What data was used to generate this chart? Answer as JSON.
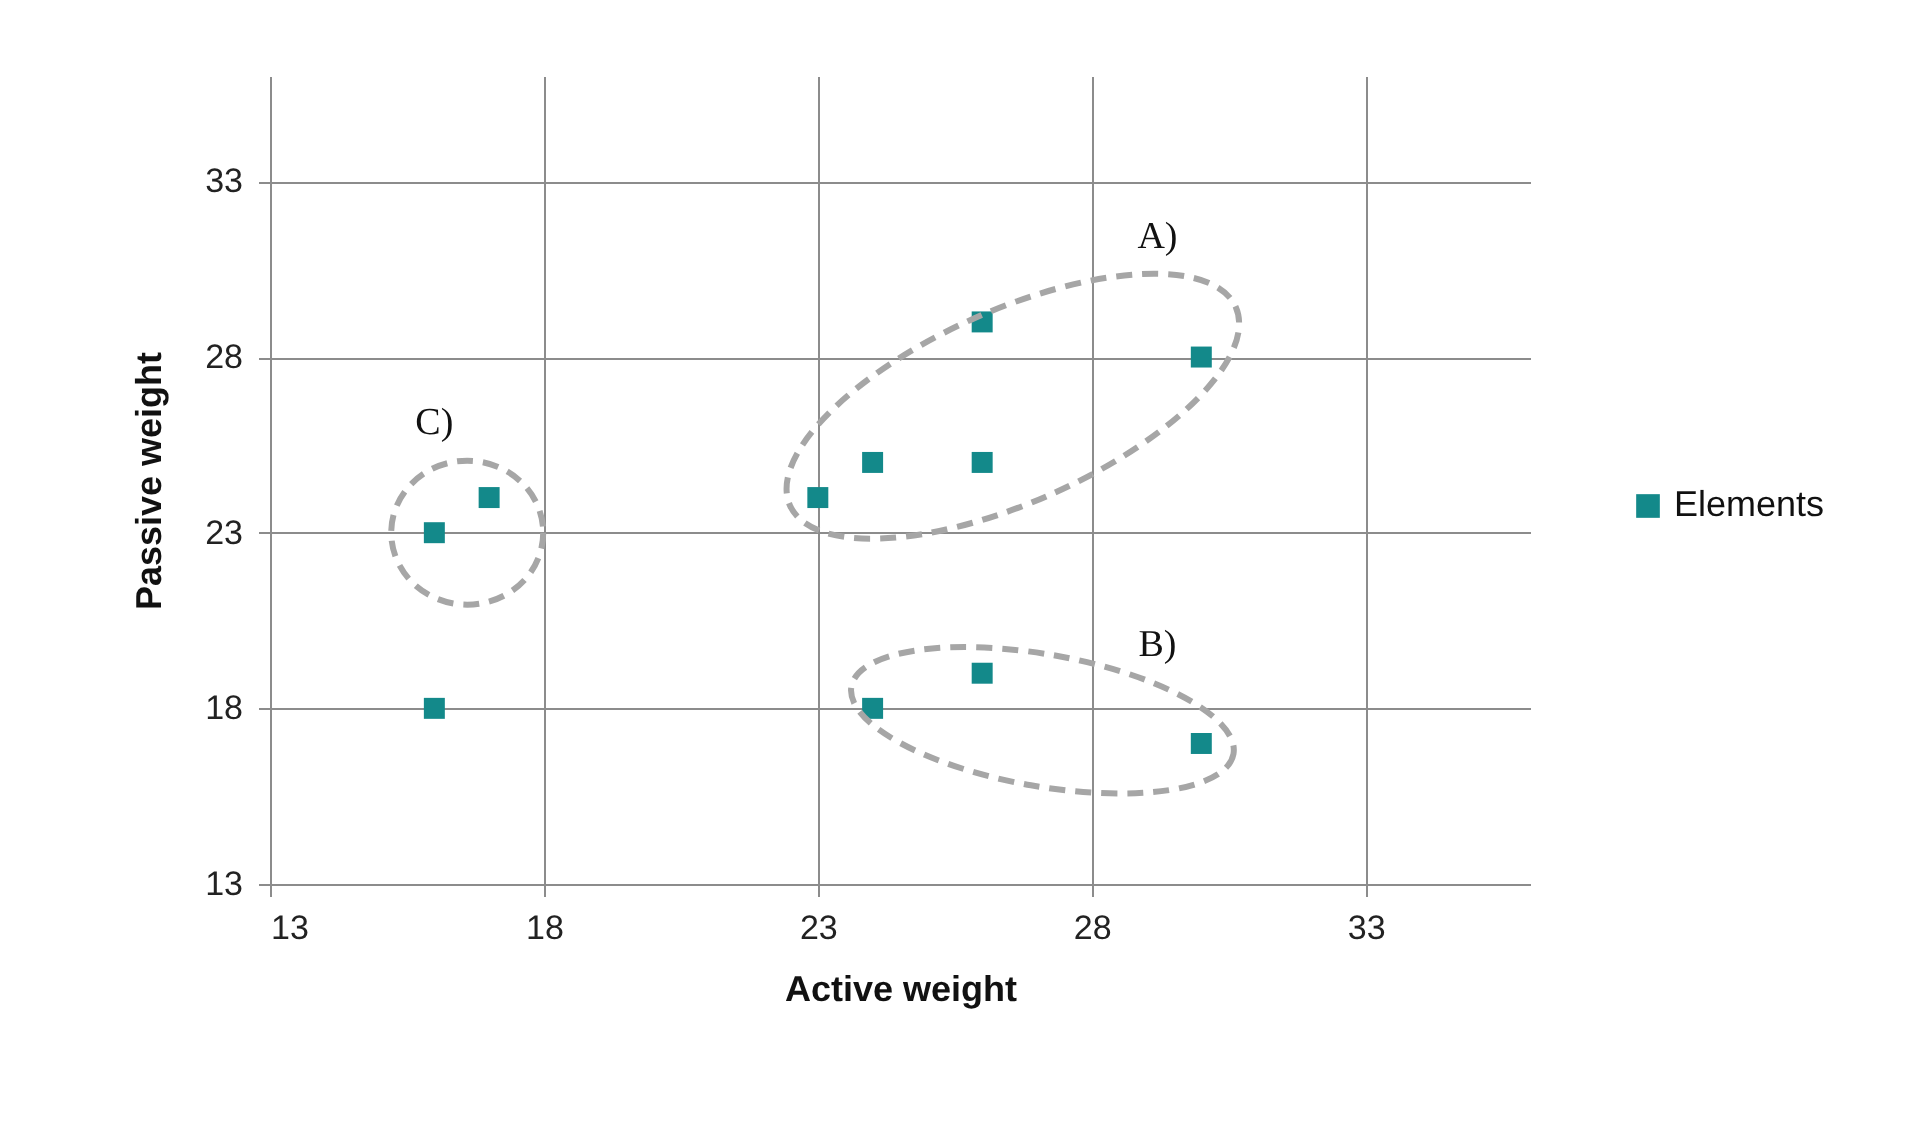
{
  "chart_data": {
    "type": "scatter",
    "xlabel": "Active weight",
    "ylabel": "Passive weight",
    "x": [
      16,
      17,
      16,
      23,
      24,
      26,
      26,
      30,
      24,
      26,
      30
    ],
    "series": [
      {
        "name": "Elements",
        "color": "#13898a",
        "values": [
          23,
          24,
          18,
          24,
          25,
          25,
          29,
          28,
          18,
          19,
          17
        ]
      }
    ],
    "xlim": [
      13,
      36
    ],
    "ylim": [
      13,
      36
    ],
    "xticks": [
      13,
      18,
      23,
      28,
      33
    ],
    "yticks": [
      13,
      18,
      23,
      28,
      33
    ],
    "grid": true,
    "legend": "right",
    "marker": "square",
    "annotations": [
      "A)",
      "B)",
      "C)"
    ]
  }
}
